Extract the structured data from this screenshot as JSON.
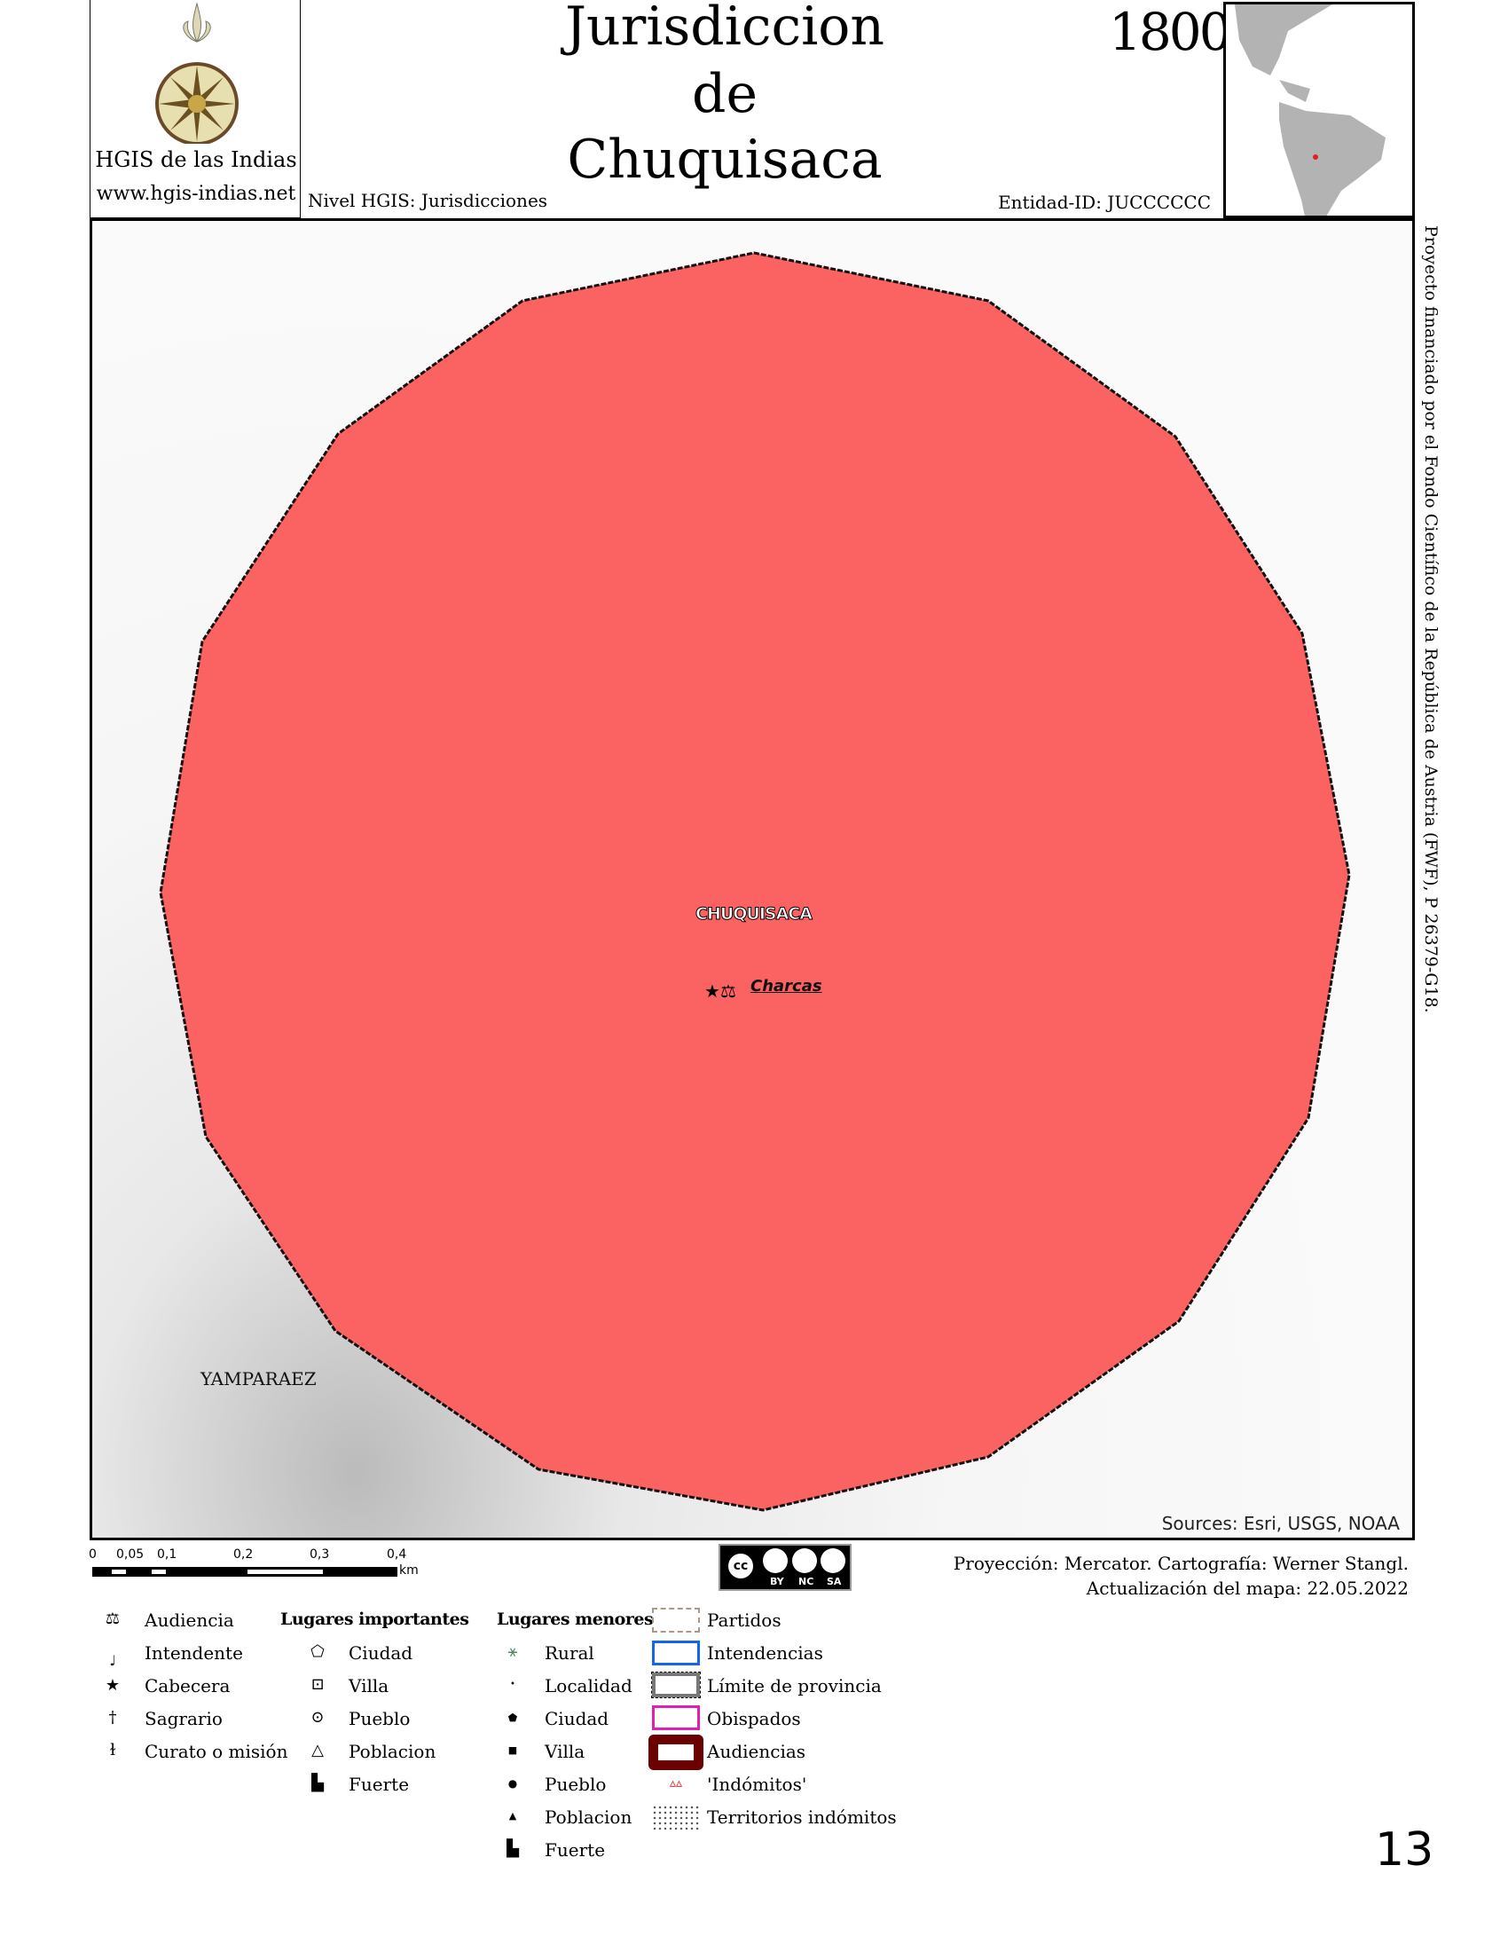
{
  "header": {
    "logo_name": "HGIS de las Indias",
    "logo_url": "www.hgis-indias.net",
    "title_lines": [
      "Jurisdiccion",
      "de",
      "Chuquisaca"
    ],
    "year": "1800",
    "nivel": "Nivel HGIS: Jurisdicciones",
    "entidad": "Entidad-ID: JUCCCCCC"
  },
  "map": {
    "fill_color": "#fb6262",
    "labels": {
      "main": "CHUQUISACA",
      "place": "Charcas",
      "neighbor": "YAMPARAEZ"
    },
    "sources": "Sources: Esri, USGS, NOAA",
    "inset_marker_color": "#e02020"
  },
  "side_note": "Proyecto financiado por el Fondo Científico de la República de Austria (FWF), P 26379-G18.",
  "scale_bar": {
    "ticks": [
      "0",
      "0,05",
      "0,1",
      "0,2",
      "0,3",
      "0,4"
    ],
    "unit": "km"
  },
  "license": {
    "badge": "cc",
    "parts": [
      "BY",
      "NC",
      "SA"
    ]
  },
  "credits": [
    "Proyección: Mercator. Cartografía: Werner Stangl.",
    "Actualización del mapa: 22.05.2022"
  ],
  "legend": {
    "col1": [
      {
        "icon": "scales-icon",
        "label": "Audiencia"
      },
      {
        "icon": "",
        "label": "Intendente"
      },
      {
        "icon": "star-icon",
        "label": "Cabecera"
      },
      {
        "icon": "cross-icon",
        "label": "Sagrario"
      },
      {
        "icon": "bell-icon",
        "label": "Curato o misión"
      }
    ],
    "col2_heading": "Lugares importantes",
    "col2": [
      "Ciudad",
      "Villa",
      "Pueblo",
      "Poblacion",
      "Fuerte"
    ],
    "col3_heading": "Lugares menores",
    "col3": [
      "Rural",
      "Localidad",
      "Ciudad",
      "Villa",
      "Pueblo",
      "Poblacion",
      "Fuerte"
    ],
    "col4": [
      "Partidos",
      "Intendencias",
      "Límite de provincia",
      "Obispados",
      "Audiencias",
      "'Indómitos'",
      "Territorios indómitos"
    ]
  },
  "page_number": "13"
}
